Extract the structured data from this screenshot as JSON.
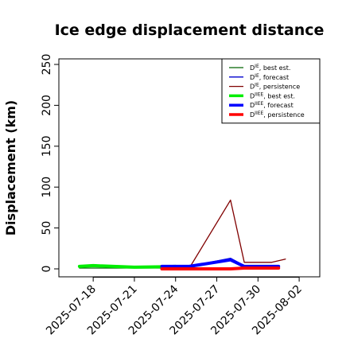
{
  "chart_data": {
    "type": "line",
    "title": "Ice edge displacement distance",
    "ylabel": "Displacement (km)",
    "xlabel": "",
    "ylim": [
      0,
      250
    ],
    "yticks": [
      0,
      50,
      100,
      150,
      200,
      250
    ],
    "xlim": [
      "2025-07-15T12:00",
      "2025-08-03T12:00"
    ],
    "xticks": [
      {
        "date": "2025-07-18",
        "label": "2025-07-18",
        "color": "#000000"
      },
      {
        "date": "2025-07-21",
        "label": "2025-07-21",
        "color": "#000000"
      },
      {
        "date": "2025-07-24",
        "label": "2025-07-24",
        "color": "#228b22"
      },
      {
        "date": "2025-07-27",
        "label": "2025-07-27",
        "color": "#000000"
      },
      {
        "date": "2025-07-30",
        "label": "2025-07-30",
        "color": "#000000"
      },
      {
        "date": "2025-08-02",
        "label": "2025-08-02",
        "color": "#000000"
      }
    ],
    "legend_position": "top-right",
    "series": [
      {
        "name": "D^IE, best est.",
        "label_main": "D",
        "label_sup": "IE",
        "label_rest": ", best est.",
        "color": "#006400",
        "width": 1.3,
        "x": [
          "2025-07-17",
          "2025-07-17.5",
          "2025-07-18",
          "2025-07-21",
          "2025-07-23",
          "2025-07-24"
        ],
        "y": [
          1,
          1,
          1,
          1,
          1,
          1
        ]
      },
      {
        "name": "D^IE, forecast",
        "label_main": "D",
        "label_sup": "IE",
        "label_rest": ", forecast",
        "color": "#0000cd",
        "width": 1.3,
        "x": [
          "2025-07-23",
          "2025-07-25",
          "2025-07-28",
          "2025-07-29",
          "2025-07-31",
          "2025-07-31.5"
        ],
        "y": [
          3,
          3,
          13,
          4,
          4,
          4
        ]
      },
      {
        "name": "D^IE, persistence",
        "label_main": "D",
        "label_sup": "IE",
        "label_rest": ", persistence",
        "color": "#800000",
        "width": 1.3,
        "x": [
          "2025-07-25",
          "2025-07-28",
          "2025-07-29",
          "2025-07-31",
          "2025-08-01"
        ],
        "y": [
          1,
          84,
          8,
          8,
          12
        ]
      },
      {
        "name": "D^IIEE, best est.",
        "label_main": "D",
        "label_sup": "IIEE",
        "label_rest": ", best est.",
        "color": "#00ee00",
        "width": 4,
        "x": [
          "2025-07-17",
          "2025-07-17.5",
          "2025-07-18",
          "2025-07-21",
          "2025-07-23",
          "2025-07-24"
        ],
        "y": [
          3,
          3.5,
          4,
          2,
          2.5,
          3
        ]
      },
      {
        "name": "D^IIEE, forecast",
        "label_main": "D",
        "label_sup": "IIEE",
        "label_rest": ", forecast",
        "color": "#0000ff",
        "width": 4,
        "x": [
          "2025-07-23",
          "2025-07-25",
          "2025-07-28",
          "2025-07-29",
          "2025-07-31",
          "2025-07-31.5"
        ],
        "y": [
          3,
          3,
          11,
          3,
          3,
          3
        ]
      },
      {
        "name": "D^IIEE, persistence",
        "label_main": "D",
        "label_sup": "IIEE",
        "label_rest": ", persistence",
        "color": "#ff0000",
        "width": 4,
        "x": [
          "2025-07-23",
          "2025-07-25",
          "2025-07-28",
          "2025-07-29",
          "2025-07-31",
          "2025-07-31.5"
        ],
        "y": [
          0,
          0,
          0,
          1,
          1,
          1
        ]
      }
    ]
  }
}
